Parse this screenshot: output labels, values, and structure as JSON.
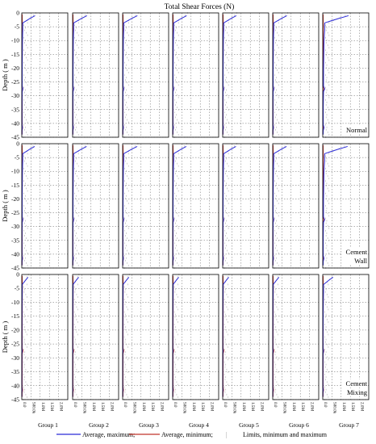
{
  "chart_data": {
    "type": "line",
    "title": "Total Shear Forces (N)",
    "ylabel": "Depth ( m )",
    "ylim": [
      -45,
      0
    ],
    "yticks": [
      0,
      -5,
      -10,
      -15,
      -20,
      -25,
      -30,
      -35,
      -40,
      -45
    ],
    "xlim": [
      0,
      2500000
    ],
    "xticks": [
      "0.0",
      "500.0k",
      "1.0M",
      "1.5M",
      "2.0M"
    ],
    "xtick_values": [
      0,
      500000,
      1000000,
      1500000,
      2000000
    ],
    "grid": true,
    "groups": [
      "Group 1",
      "Group 2",
      "Group 3",
      "Group 4",
      "Group 5",
      "Group 6",
      "Group 7"
    ],
    "rows": [
      {
        "condition": [
          "Normal"
        ],
        "peak_by_group": [
          720000,
          780000,
          800000,
          760000,
          740000,
          770000,
          1400000
        ]
      },
      {
        "condition": [
          "Cement",
          "Wall"
        ],
        "peak_by_group": [
          700000,
          760000,
          790000,
          740000,
          720000,
          750000,
          1350000
        ]
      },
      {
        "condition": [
          "Cement",
          "Mixing"
        ],
        "peak_by_group": [
          340000,
          330000,
          340000,
          330000,
          330000,
          340000,
          560000
        ]
      }
    ],
    "series": [
      {
        "name": "Average, maximum",
        "color": "#2b2bd8",
        "depth": [
          -1,
          -2,
          -3,
          -3.6,
          -4.5,
          -6,
          -8,
          -10,
          -12,
          -15,
          -18,
          -21,
          -24,
          -26.5,
          -27.5,
          -28.5,
          -31,
          -34,
          -37,
          -40.5,
          -41.5,
          -42.5,
          -44
        ],
        "shape": [
          1.0,
          0.62,
          0.28,
          0.08,
          0.07,
          0.075,
          0.06,
          0.05,
          0.045,
          0.04,
          0.035,
          0.03,
          0.03,
          0.03,
          0.075,
          0.03,
          0.025,
          0.02,
          0.02,
          0.02,
          0.05,
          0.02,
          0.015
        ]
      },
      {
        "name": "Average, minimum",
        "color": "#c0342b",
        "depth": [
          -0.5,
          -2,
          -4,
          -6,
          -8,
          -10,
          -12,
          -15,
          -18,
          -21,
          -24,
          -26.5,
          -27.5,
          -28.5,
          -31,
          -34,
          -37,
          -40.5,
          -41.5,
          -42.5,
          -44
        ],
        "values": [
          20000,
          25000,
          30000,
          30000,
          28000,
          26000,
          25000,
          24000,
          23000,
          22000,
          22000,
          22000,
          60000,
          22000,
          21000,
          20000,
          20000,
          20000,
          45000,
          20000,
          18000
        ]
      },
      {
        "name": "Limits, minimum and maximum",
        "color": "#999999"
      }
    ]
  },
  "legend": {
    "avg_max": "Average, maximum;",
    "avg_min": "Average, minimum;",
    "limits": "Limits, minimum and maximum",
    "limits_glyph": "|"
  },
  "colors": {
    "avg_max": "#2b2bd8",
    "avg_min": "#c0342b",
    "limits": "#999999",
    "grid": "#555555"
  }
}
